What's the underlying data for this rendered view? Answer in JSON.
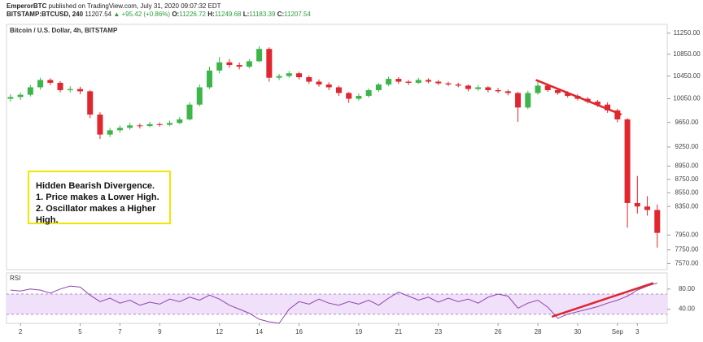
{
  "header": {
    "author": "EmperorBTC",
    "published": "published on TradingView.com, July 31, 2020 09:07:32 EDT",
    "symbol": "BITSTAMP:BTCUSD, 240",
    "last": "11207.54",
    "change": "▲ +95.42 (+0.86%)",
    "ohlc": [
      {
        "label": "O:",
        "value": "11226.72"
      },
      {
        "label": "H:",
        "value": "11249.68"
      },
      {
        "label": "L:",
        "value": "11183.39"
      },
      {
        "label": "C:",
        "value": "11207.54"
      }
    ]
  },
  "chart_data": [
    {
      "type": "candlestick",
      "title": "Bitcoin / U.S. Dollar, 4h, BITSTAMP",
      "log": true,
      "up_color": "#3cb54a",
      "down_color": "#e0262f",
      "x": [
        -0.5,
        0,
        0.5,
        1,
        1.5,
        2,
        2.5,
        3,
        3.5,
        4,
        4.5,
        5,
        5.5,
        6,
        6.5,
        7,
        7.5,
        8,
        8.5,
        9,
        9.5,
        10,
        10.5,
        11,
        11.5,
        12,
        12.5,
        13,
        13.5,
        14,
        14.5,
        15,
        15.5,
        16,
        16.5,
        17,
        17.5,
        18,
        18.5,
        19,
        19.5,
        20,
        20.5,
        21,
        21.5,
        22,
        22.5,
        23,
        23.5,
        24,
        24.5,
        25,
        25.5,
        26,
        26.5,
        27,
        27.5,
        28,
        28.5,
        29,
        29.5,
        30,
        30.5,
        31,
        31.5,
        32
      ],
      "open": [
        10050,
        10080,
        10120,
        10250,
        10380,
        10330,
        10200,
        10220,
        10180,
        9780,
        9450,
        9520,
        9560,
        9600,
        9590,
        9620,
        9610,
        9640,
        9700,
        9950,
        10250,
        10550,
        10700,
        10650,
        10620,
        10720,
        10950,
        10420,
        10450,
        10500,
        10430,
        10350,
        10300,
        10250,
        10150,
        10050,
        10100,
        10200,
        10300,
        10400,
        10350,
        10330,
        10380,
        10350,
        10320,
        10300,
        10280,
        10220,
        10250,
        10200,
        10180,
        10150,
        9900,
        10150,
        10280,
        10200,
        10150,
        10100,
        10050,
        10000,
        9950,
        9850,
        9700,
        8400,
        8350,
        8300
      ],
      "high": [
        10130,
        10160,
        10290,
        10420,
        10410,
        10360,
        10270,
        10260,
        10200,
        9820,
        9560,
        9600,
        9640,
        9630,
        9660,
        9650,
        9680,
        9740,
        9990,
        10300,
        10620,
        10800,
        10760,
        10700,
        10760,
        11000,
        10980,
        10490,
        10540,
        10530,
        10460,
        10390,
        10340,
        10280,
        10170,
        10140,
        10230,
        10330,
        10440,
        10430,
        10380,
        10420,
        10410,
        10380,
        10350,
        10330,
        10300,
        10290,
        10270,
        10240,
        10210,
        10170,
        10190,
        10350,
        10310,
        10230,
        10180,
        10130,
        10080,
        10030,
        9990,
        9880,
        9720,
        8800,
        8500,
        8380
      ],
      "low": [
        10000,
        10030,
        10090,
        10210,
        10290,
        10160,
        10160,
        10130,
        9720,
        9380,
        9410,
        9480,
        9530,
        9550,
        9570,
        9580,
        9590,
        9620,
        9680,
        9920,
        10220,
        10500,
        10600,
        10570,
        10590,
        10700,
        10350,
        10380,
        10420,
        10390,
        10310,
        10260,
        10200,
        10100,
        9980,
        10020,
        10070,
        10170,
        10270,
        10310,
        10290,
        10310,
        10320,
        10290,
        10270,
        10250,
        10180,
        10190,
        10160,
        10150,
        10110,
        9660,
        9870,
        10120,
        10170,
        10120,
        10070,
        10020,
        9970,
        9910,
        9810,
        9650,
        8050,
        8250,
        8220,
        7780
      ],
      "close": [
        10080,
        10120,
        10250,
        10380,
        10330,
        10200,
        10220,
        10180,
        9780,
        9450,
        9520,
        9560,
        9600,
        9590,
        9620,
        9610,
        9640,
        9700,
        9950,
        10250,
        10550,
        10700,
        10650,
        10620,
        10720,
        10950,
        10420,
        10450,
        10500,
        10430,
        10350,
        10300,
        10250,
        10150,
        10050,
        10100,
        10200,
        10300,
        10400,
        10350,
        10330,
        10380,
        10350,
        10320,
        10300,
        10280,
        10220,
        10250,
        10200,
        10180,
        10150,
        9900,
        10150,
        10280,
        10200,
        10150,
        10100,
        10050,
        10000,
        9950,
        9850,
        9700,
        8400,
        8350,
        8300,
        7980
      ],
      "xlim": [
        -0.7,
        32.5
      ],
      "ylim": [
        7490,
        11390
      ],
      "yticks": [
        {
          "value": 11250,
          "label": "11250.00"
        },
        {
          "value": 10850,
          "label": "10850.00"
        },
        {
          "value": 10450,
          "label": "10450.00"
        },
        {
          "value": 10050,
          "label": "10050.00"
        },
        {
          "value": 9650,
          "label": "9650.00"
        },
        {
          "value": 9250,
          "label": "9250.00"
        },
        {
          "value": 8950,
          "label": "8950.00"
        },
        {
          "value": 8750,
          "label": "8750.00"
        },
        {
          "value": 8550,
          "label": "8550.00"
        },
        {
          "value": 8350,
          "label": "8350.00"
        },
        {
          "value": 7950,
          "label": "7950.00"
        },
        {
          "value": 7750,
          "label": "7750.00"
        },
        {
          "value": 7570,
          "label": "7570.00"
        }
      ],
      "trendline": {
        "x": [
          25.9,
          30.2
        ],
        "y": [
          10380,
          9780
        ],
        "color": "#e0262f"
      },
      "annotation": [
        "Hidden Bearish Divergence.",
        "1. Price makes a Lower High.",
        "2. Oscillator makes a Higher High."
      ]
    },
    {
      "type": "line",
      "title": "RSI",
      "color": "#8e44ad",
      "band": [
        30,
        70
      ],
      "band_color": "#f0e0fa",
      "x": [
        -0.5,
        0,
        0.5,
        1,
        1.5,
        2,
        2.5,
        3,
        3.5,
        4,
        4.5,
        5,
        5.5,
        6,
        6.5,
        7,
        7.5,
        8,
        8.5,
        9,
        9.5,
        10,
        10.5,
        11,
        11.5,
        12,
        12.5,
        13,
        13.5,
        14,
        14.5,
        15,
        15.5,
        16,
        16.5,
        17,
        17.5,
        18,
        18.5,
        19,
        19.5,
        20,
        20.5,
        21,
        21.5,
        22,
        22.5,
        23,
        23.5,
        24,
        24.5,
        25,
        25.5,
        26,
        26.5,
        27,
        27.5,
        28,
        28.5,
        29,
        29.5,
        30,
        30.5,
        31,
        31.5,
        32
      ],
      "values": [
        78,
        76,
        80,
        78,
        72,
        80,
        86,
        84,
        68,
        55,
        62,
        52,
        58,
        48,
        54,
        50,
        60,
        55,
        64,
        58,
        68,
        60,
        48,
        40,
        32,
        20,
        15,
        12,
        40,
        55,
        50,
        60,
        52,
        48,
        55,
        50,
        58,
        48,
        62,
        74,
        66,
        58,
        64,
        54,
        62,
        55,
        60,
        52,
        64,
        70,
        66,
        42,
        52,
        58,
        44,
        22,
        30,
        35,
        40,
        45,
        52,
        58,
        66,
        78,
        86,
        92
      ],
      "xlim": [
        -0.7,
        32.5
      ],
      "ylim": [
        12,
        112
      ],
      "yticks": [
        {
          "value": 80,
          "label": "80.00"
        },
        {
          "value": 40,
          "label": "40.00"
        }
      ],
      "xticks": [
        {
          "value": 0,
          "label": "2"
        },
        {
          "value": 3,
          "label": "5"
        },
        {
          "value": 5,
          "label": "7"
        },
        {
          "value": 7,
          "label": "9"
        },
        {
          "value": 10,
          "label": "12"
        },
        {
          "value": 12,
          "label": "14"
        },
        {
          "value": 14,
          "label": "16"
        },
        {
          "value": 17,
          "label": "19"
        },
        {
          "value": 19,
          "label": "21"
        },
        {
          "value": 21,
          "label": "23"
        },
        {
          "value": 24,
          "label": "26"
        },
        {
          "value": 26,
          "label": "28"
        },
        {
          "value": 28,
          "label": "30"
        },
        {
          "value": 30,
          "label": "Sep"
        },
        {
          "value": 31,
          "label": "3"
        }
      ],
      "trendline": {
        "x": [
          26.7,
          31.8
        ],
        "y": [
          25,
          92
        ],
        "color": "#e0262f"
      }
    }
  ]
}
